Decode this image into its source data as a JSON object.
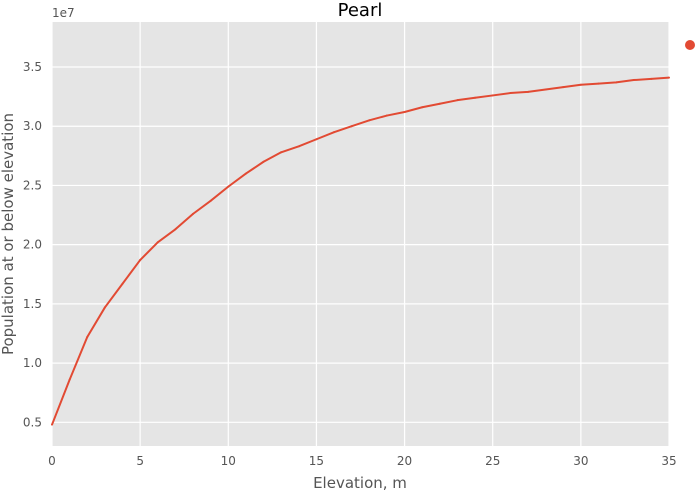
{
  "chart_data": {
    "type": "line",
    "title": "Pearl",
    "xlabel": "Elevation, m",
    "ylabel": "Population at or below elevation",
    "y_offset_label": "1e7",
    "y_scale": 10000000,
    "xlim": [
      0,
      35
    ],
    "ylim": [
      0.3,
      3.88
    ],
    "xticks": [
      0,
      5,
      10,
      15,
      20,
      25,
      30,
      35
    ],
    "xtick_labels": [
      "0",
      "5",
      "10",
      "15",
      "20",
      "25",
      "30",
      "35"
    ],
    "yticks": [
      0.5,
      1.0,
      1.5,
      2.0,
      2.5,
      3.0,
      3.5
    ],
    "ytick_labels": [
      "0.5",
      "1.0",
      "1.5",
      "2.0",
      "2.5",
      "3.0",
      "3.5"
    ],
    "grid": true,
    "legend": "top-right",
    "series": [
      {
        "name": "",
        "color": "#e24a33",
        "x": [
          0,
          1,
          2,
          3,
          4,
          5,
          6,
          7,
          8,
          9,
          10,
          11,
          12,
          13,
          14,
          15,
          16,
          17,
          18,
          19,
          20,
          21,
          22,
          23,
          24,
          25,
          26,
          27,
          28,
          29,
          30,
          31,
          32,
          33,
          34,
          35
        ],
        "y": [
          0.48,
          0.86,
          1.22,
          1.47,
          1.67,
          1.87,
          2.02,
          2.13,
          2.26,
          2.37,
          2.49,
          2.6,
          2.7,
          2.78,
          2.83,
          2.89,
          2.95,
          3.0,
          3.05,
          3.09,
          3.12,
          3.16,
          3.19,
          3.22,
          3.24,
          3.26,
          3.28,
          3.29,
          3.31,
          3.33,
          3.35,
          3.36,
          3.37,
          3.39,
          3.4,
          3.41
        ]
      }
    ]
  }
}
